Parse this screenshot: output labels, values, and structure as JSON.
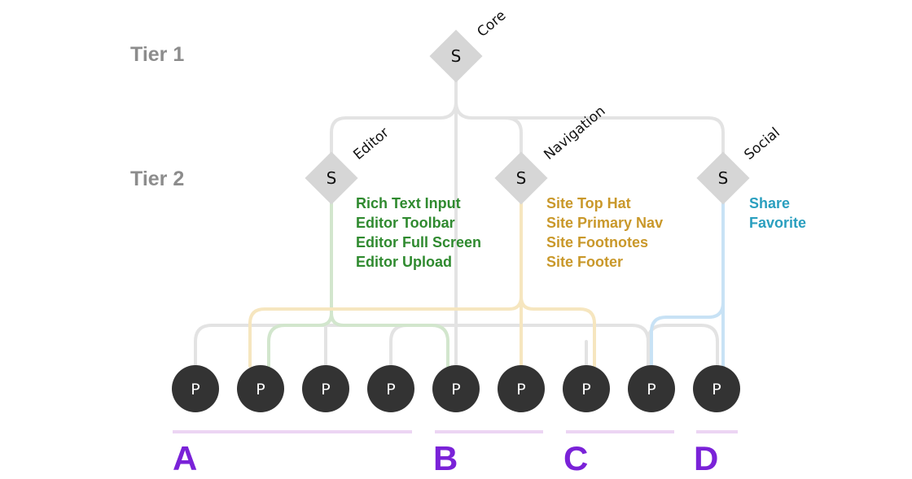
{
  "tiers": [
    {
      "label": "Tier 1"
    },
    {
      "label": "Tier 2"
    }
  ],
  "core": {
    "label": "Core",
    "node": "S"
  },
  "services": [
    {
      "name": "Editor",
      "node": "S",
      "color": "#2f8a2f",
      "features": [
        "Rich Text Input",
        "Editor Toolbar",
        "Editor Full Screen",
        "Editor Upload"
      ]
    },
    {
      "name": "Navigation",
      "node": "S",
      "color": "#c9982a",
      "features": [
        "Site Top Hat",
        "Site Primary Nav",
        "Site Footnotes",
        "Site Footer"
      ]
    },
    {
      "name": "Social",
      "node": "S",
      "color": "#2a9fbf",
      "features": [
        "Share",
        "Favorite"
      ]
    }
  ],
  "products": [
    "P",
    "P",
    "P",
    "P",
    "P",
    "P",
    "P",
    "P",
    "P"
  ],
  "groups": [
    {
      "label": "A"
    },
    {
      "label": "B"
    },
    {
      "label": "C"
    },
    {
      "label": "D"
    }
  ],
  "colors": {
    "gray_line": "#e3e3e3",
    "green_line": "#d2e6cd",
    "yellow_line": "#f6e6bf",
    "blue_line": "#c8e2f5",
    "diamond": "#d6d6d6",
    "product": "#333333",
    "group_bar": "#ecd5f3",
    "group_text": "#7a22d8"
  }
}
